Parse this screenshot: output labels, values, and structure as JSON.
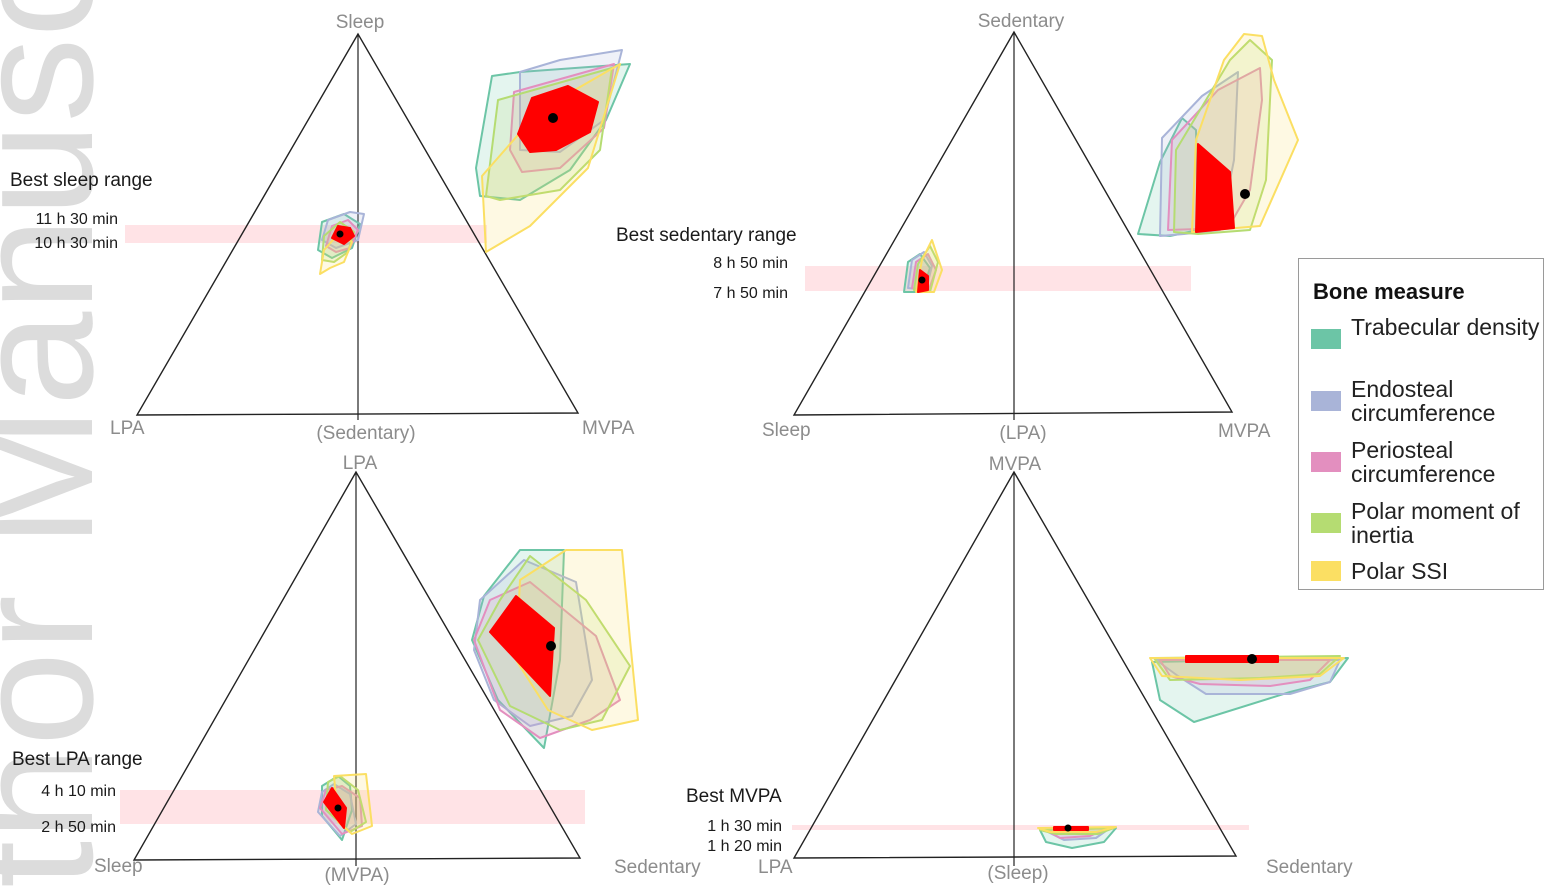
{
  "watermark": "thor Manuscr",
  "legend": {
    "title": "Bone measure",
    "items": [
      {
        "label": "Trabecular density",
        "color": "#6cc5a6"
      },
      {
        "label": "Endosteal circumference",
        "color": "#a9b4d8"
      },
      {
        "label": "Periosteal circumference",
        "color": "#e38fbf"
      },
      {
        "label": "Polar moment of inertia",
        "color": "#b5dc72"
      },
      {
        "label": "Polar SSI",
        "color": "#fbdf63"
      }
    ]
  },
  "chart_data": [
    {
      "type": "ternary",
      "vertices": {
        "top": "Sleep",
        "left": "LPA",
        "right": "MVPA",
        "bottom": "(Sedentary)"
      },
      "best_range": {
        "label": "Best sleep range",
        "upper": "11 h 30 min",
        "lower": "10 h 30 min"
      }
    },
    {
      "type": "ternary",
      "vertices": {
        "top": "Sedentary",
        "left": "Sleep",
        "right": "MVPA",
        "bottom": "(LPA)"
      },
      "best_range": {
        "label": "Best sedentary range",
        "upper": "8 h 50 min",
        "lower": "7 h 50 min"
      }
    },
    {
      "type": "ternary",
      "vertices": {
        "top": "LPA",
        "left": "Sleep",
        "right": "Sedentary",
        "bottom": "(MVPA)"
      },
      "best_range": {
        "label": "Best LPA range",
        "upper": "4 h 10 min",
        "lower": "2 h 50 min"
      }
    },
    {
      "type": "ternary",
      "vertices": {
        "top": "MVPA",
        "left": "LPA",
        "right": "Sedentary",
        "bottom": "(Sleep)"
      },
      "best_range": {
        "label": "Best MVPA",
        "upper": "1 h 30 min",
        "lower": "1 h 20 min"
      }
    }
  ]
}
